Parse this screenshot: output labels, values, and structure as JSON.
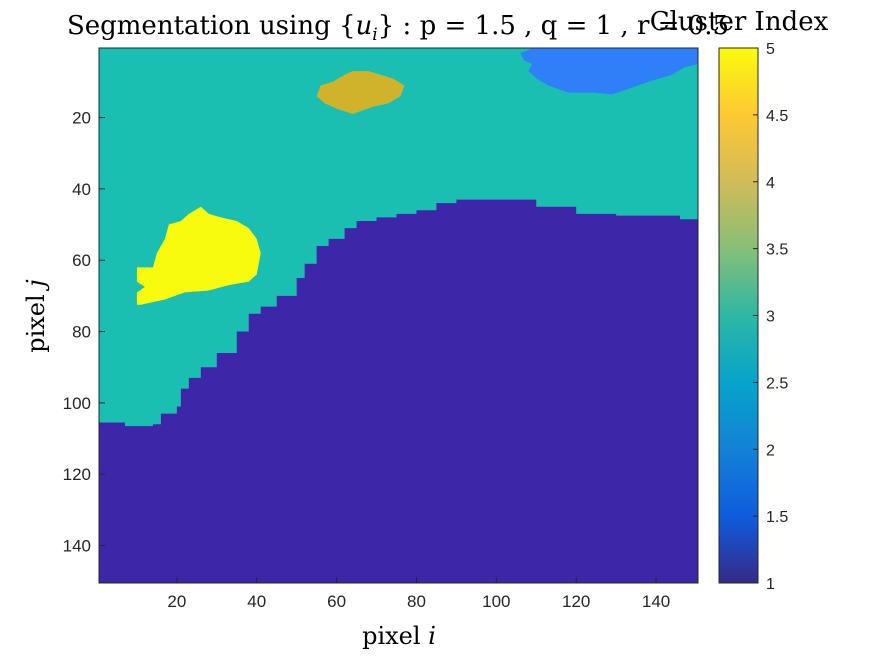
{
  "chart_data": {
    "type": "heatmap",
    "title_parts": {
      "lead": "Segmentation using ",
      "lbrace": "{",
      "u": "u",
      "sub": "i",
      "rbrace": "}",
      "rest": " : p = 1.5 , q = 1 , r = 0.5"
    },
    "xlabel_parts": {
      "text": "pixel ",
      "var": "i"
    },
    "ylabel_parts": {
      "text": "pixel ",
      "var": "j"
    },
    "xlim": [
      0.5,
      150.5
    ],
    "ylim": [
      0.5,
      150.5
    ],
    "xticks": [
      20,
      40,
      60,
      80,
      100,
      120,
      140
    ],
    "yticks": [
      20,
      40,
      60,
      80,
      100,
      120,
      140
    ],
    "colorbar": {
      "title": "Cluster Index",
      "range": [
        1,
        5
      ],
      "ticks": [
        "1",
        "1.5",
        "2",
        "2.5",
        "3",
        "3.5",
        "4",
        "4.5",
        "5"
      ]
    },
    "cluster_colors": {
      "1": "#3e26a8",
      "2": "#2f80f8",
      "3": "#1bbfb1",
      "4": "#d0b32a",
      "5": "#f9fb0e"
    },
    "background_cluster": 3,
    "lower_region_cluster": 1,
    "boundary_j": [
      [
        0.5,
        105.5
      ],
      [
        6,
        105.5
      ],
      [
        7,
        106.5
      ],
      [
        10,
        106.5
      ],
      [
        12,
        106.5
      ],
      [
        14,
        106
      ],
      [
        16,
        103
      ],
      [
        20,
        101
      ],
      [
        21,
        96
      ],
      [
        23,
        93
      ],
      [
        26,
        90
      ],
      [
        30,
        86
      ],
      [
        35,
        80
      ],
      [
        38,
        75
      ],
      [
        41,
        73
      ],
      [
        45,
        70
      ],
      [
        50,
        65
      ],
      [
        52,
        61
      ],
      [
        55,
        56
      ],
      [
        58,
        54
      ],
      [
        62,
        51
      ],
      [
        65,
        49
      ],
      [
        70,
        48
      ],
      [
        75,
        47
      ],
      [
        80,
        46
      ],
      [
        85,
        44
      ],
      [
        90,
        43
      ],
      [
        95,
        43
      ],
      [
        100,
        43
      ],
      [
        110,
        45
      ],
      [
        120,
        47
      ],
      [
        130,
        47.5
      ],
      [
        140,
        47.5
      ],
      [
        146,
        48.5
      ],
      [
        150.5,
        49
      ]
    ],
    "regions": [
      {
        "cluster": 5,
        "polygon": [
          [
            10,
            72.5
          ],
          [
            10,
            69
          ],
          [
            12,
            67.5
          ],
          [
            10,
            66
          ],
          [
            10,
            62
          ],
          [
            14,
            62
          ],
          [
            15,
            58
          ],
          [
            17,
            54
          ],
          [
            18,
            50
          ],
          [
            21,
            49
          ],
          [
            23,
            47
          ],
          [
            26,
            45
          ],
          [
            28,
            47
          ],
          [
            31,
            48
          ],
          [
            35,
            49
          ],
          [
            38,
            51
          ],
          [
            40,
            54
          ],
          [
            41,
            58
          ],
          [
            40,
            64
          ],
          [
            38,
            66
          ],
          [
            33,
            67
          ],
          [
            28,
            68.5
          ],
          [
            22,
            69
          ],
          [
            17,
            71
          ],
          [
            13,
            72
          ],
          [
            11,
            72.5
          ]
        ]
      },
      {
        "cluster": 4,
        "polygon": [
          [
            55,
            14
          ],
          [
            56,
            11
          ],
          [
            59,
            10
          ],
          [
            62,
            8
          ],
          [
            64,
            7
          ],
          [
            68,
            7
          ],
          [
            71,
            8
          ],
          [
            74,
            9
          ],
          [
            77,
            11
          ],
          [
            76,
            14
          ],
          [
            73,
            16
          ],
          [
            69,
            17
          ],
          [
            64,
            19
          ],
          [
            60,
            17.5
          ],
          [
            57,
            16
          ]
        ]
      },
      {
        "cluster": 2,
        "polygon": [
          [
            106,
            2
          ],
          [
            109,
            0.5
          ],
          [
            150.5,
            0.5
          ],
          [
            150.5,
            5
          ],
          [
            147,
            6
          ],
          [
            144,
            8
          ],
          [
            138,
            10
          ],
          [
            133,
            12
          ],
          [
            129,
            13.5
          ],
          [
            124,
            13
          ],
          [
            118,
            13
          ],
          [
            113,
            11
          ],
          [
            110,
            9
          ],
          [
            108,
            7
          ],
          [
            109,
            5
          ],
          [
            107,
            4
          ]
        ]
      }
    ]
  }
}
